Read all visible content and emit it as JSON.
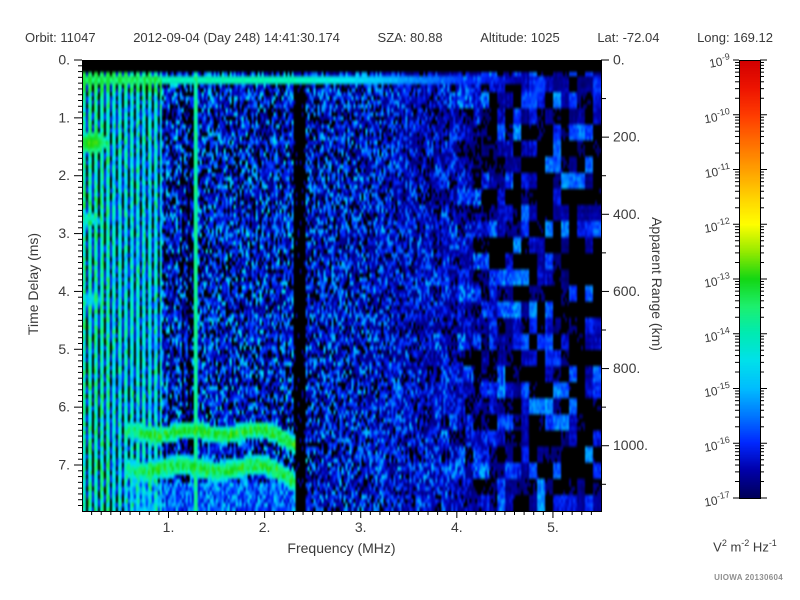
{
  "header": {
    "items": [
      "Orbit: 11047",
      "2012-09-04 (Day 248) 14:41:30.174",
      "SZA:  80.88",
      "Altitude:    1025",
      "Lat: -72.04",
      "Long: 169.12"
    ]
  },
  "chart_data": {
    "type": "heatmap",
    "subtype": "radar-ionogram-spectrogram",
    "x_axis": {
      "label": "Frequency (MHz)",
      "min": 0.1,
      "max": 5.5,
      "major_ticks": [
        1,
        2,
        3,
        4,
        5
      ],
      "major_tick_labels": [
        "1.",
        "2.",
        "3.",
        "4.",
        "5."
      ],
      "minor_tick_step": 0.1
    },
    "y_axis_left": {
      "label": "Time Delay (ms)",
      "min": 0,
      "max": 7.795,
      "major_ticks": [
        0,
        1,
        2,
        3,
        4,
        5,
        6,
        7
      ],
      "major_tick_labels": [
        "0.",
        "1.",
        "2.",
        "3.",
        "4.",
        "5.",
        "6.",
        "7."
      ],
      "minor_tick_step": 0.1,
      "direction": "down"
    },
    "y_axis_right": {
      "label": "Apparent Range (km)",
      "min": 0,
      "major_ticks": [
        0,
        200,
        400,
        600,
        800,
        1000
      ],
      "major_tick_labels": [
        "0.",
        "200.",
        "400.",
        "600.",
        "800.",
        "1000."
      ],
      "minor_tick_step": 100,
      "km_per_ms": 150
    },
    "colorbar": {
      "scale": "log",
      "exponent_base": "10",
      "exponents": [
        -9,
        -10,
        -11,
        -12,
        -13,
        -14,
        -15,
        -16,
        -17
      ],
      "top_value_exp": -9,
      "bottom_value_exp": -17,
      "unit_parts": [
        [
          "V",
          "2"
        ],
        [
          "m",
          "-2"
        ],
        [
          "Hz",
          "-1"
        ]
      ],
      "colormap_stops": [
        "#d20000",
        "#ee1400",
        "#ff3c00",
        "#ff6e00",
        "#ffa000",
        "#ffd200",
        "#ffff00",
        "#96eb00",
        "#14d714",
        "#1ef06e",
        "#00ebb4",
        "#00e1eb",
        "#00beff",
        "#0078ff",
        "#0028ff",
        "#0000aa",
        "#00005a"
      ]
    },
    "features": {
      "seed": 1234,
      "transmit_blank_ms": 0.235,
      "calibration_line": {
        "t_ms": 0.34,
        "t_halfwidth_ms": 0.09,
        "power_exp": -14.0,
        "fade_start_mhz": 2.3
      },
      "plasma_harmonics": {
        "f_min": 0.1,
        "f_max": 0.93,
        "spacing_mhz": 0.062,
        "first_center_mhz": 0.115,
        "power_exp": -14.6
      },
      "resonance_vline": {
        "f_mhz": 1.285,
        "halfwidth_mhz": 0.026,
        "power_exp": -14.1
      },
      "quiet_gap": {
        "f_min": 1.13,
        "f_max": 1.27,
        "attenuation": 0.55
      },
      "absorption_band": {
        "f_min": 2.31,
        "f_max": 2.425
      },
      "surface_blobs": [
        {
          "t_ms": 1.43,
          "f_mhz": 0.2,
          "t_halfwidth": 0.17,
          "f_halfwidth": 0.17,
          "power_exp": -13.0
        },
        {
          "t_ms": 2.76,
          "f_mhz": 0.17,
          "t_halfwidth": 0.13,
          "f_halfwidth": 0.12,
          "power_exp": -14.2
        },
        {
          "t_ms": 4.15,
          "f_mhz": 0.2,
          "t_halfwidth": 0.16,
          "f_halfwidth": 0.14,
          "power_exp": -15.0
        }
      ],
      "ionosphere_traces": [
        {
          "t_ms": 6.44,
          "f_min": 0.54,
          "f_max": 2.33,
          "halfwidth_ms": 0.16,
          "power_exp": -13.05
        },
        {
          "t_ms": 7.06,
          "f_min": 0.54,
          "f_max": 2.33,
          "halfwidth_ms": 0.18,
          "power_exp": -13.15
        }
      ],
      "noise_floor_exp": -16.8,
      "noise_black_fraction_low_f": 0.17,
      "noise_black_fraction_high_f": 0.47
    }
  },
  "footer": {
    "credit": "UIOWA 20130604"
  }
}
